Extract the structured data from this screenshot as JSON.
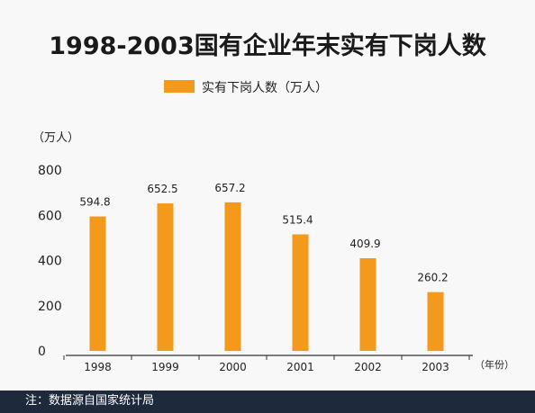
{
  "chart_data": {
    "type": "bar",
    "title": "1998-2003国有企业年末实有下岗人数",
    "legend": [
      "实有下岗人数（万人）"
    ],
    "legend_position": "top",
    "ylabel": "（万人）",
    "xlabel": "（年份）",
    "categories": [
      "1998",
      "1999",
      "2000",
      "2001",
      "2002",
      "2003"
    ],
    "series": [
      {
        "name": "实有下岗人数（万人）",
        "values": [
          594.8,
          652.5,
          657.2,
          515.4,
          409.9,
          260.2
        ],
        "value_labels": [
          "594.8",
          "652.5",
          "657.2",
          "515.4",
          "409.9",
          "260.2"
        ]
      }
    ],
    "yticks": [
      "0",
      "200",
      "400",
      "600",
      "800"
    ],
    "ylim": [
      0,
      800
    ],
    "grid": false,
    "bar_color": "#f39a1d"
  },
  "footer": {
    "note": "注：数据源自国家统计局"
  }
}
